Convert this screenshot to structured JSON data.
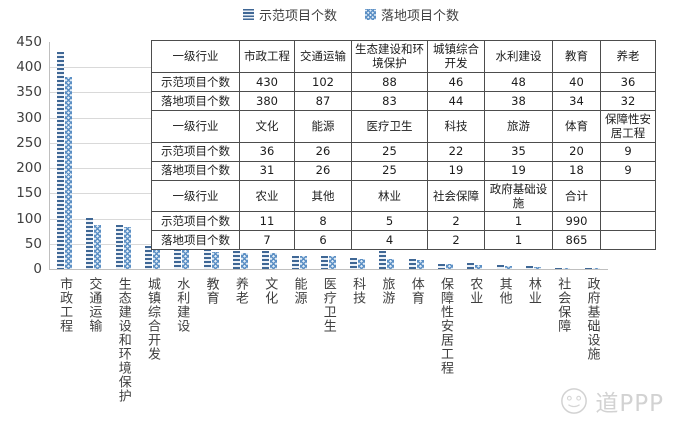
{
  "chart_data": {
    "type": "bar",
    "title": "",
    "categories": [
      "市政工程",
      "交通运输",
      "生态建设和环境保护",
      "城镇综合开发",
      "水利建设",
      "教育",
      "养老",
      "文化",
      "能源",
      "医疗卫生",
      "科技",
      "旅游",
      "体育",
      "保障性安居工程",
      "农业",
      "其他",
      "林业",
      "社会保障",
      "政府基础设施"
    ],
    "series": [
      {
        "name": "示范项目个数",
        "values": [
          430,
          102,
          88,
          46,
          48,
          40,
          36,
          36,
          26,
          25,
          22,
          35,
          20,
          9,
          11,
          8,
          5,
          2,
          1
        ]
      },
      {
        "name": "落地项目个数",
        "values": [
          380,
          87,
          83,
          44,
          38,
          34,
          32,
          31,
          26,
          25,
          19,
          19,
          18,
          9,
          7,
          6,
          4,
          2,
          1
        ]
      }
    ],
    "totals": {
      "label": "合计",
      "示范项目个数": 990,
      "落地项目个数": 865
    },
    "ylim": [
      0,
      450
    ],
    "y_ticks": [
      0,
      50,
      100,
      150,
      200,
      250,
      300,
      350,
      400,
      450
    ],
    "grid": true,
    "legend_position": "top"
  },
  "table": {
    "rows": [
      {
        "type": "hdr",
        "cells": [
          "一级行业",
          "市政工程",
          "交通运输",
          "生态建设和环境保护",
          "城镇综合开发",
          "水利建设",
          "教育",
          "养老"
        ]
      },
      {
        "type": "data",
        "cells": [
          "示范项目个数",
          "430",
          "102",
          "88",
          "46",
          "48",
          "40",
          "36"
        ]
      },
      {
        "type": "data",
        "cells": [
          "落地项目个数",
          "380",
          "87",
          "83",
          "44",
          "38",
          "34",
          "32"
        ]
      },
      {
        "type": "hdr",
        "cells": [
          "一级行业",
          "文化",
          "能源",
          "医疗卫生",
          "科技",
          "旅游",
          "体育",
          "保障性安居工程"
        ]
      },
      {
        "type": "data",
        "cells": [
          "示范项目个数",
          "36",
          "26",
          "25",
          "22",
          "35",
          "20",
          "9"
        ]
      },
      {
        "type": "data",
        "cells": [
          "落地项目个数",
          "31",
          "26",
          "25",
          "19",
          "19",
          "18",
          "9"
        ]
      },
      {
        "type": "hdr",
        "cells": [
          "一级行业",
          "农业",
          "其他",
          "林业",
          "社会保障",
          "政府基础设施",
          "合计",
          ""
        ]
      },
      {
        "type": "data",
        "cells": [
          "示范项目个数",
          "11",
          "8",
          "5",
          "2",
          "1",
          "990",
          ""
        ]
      },
      {
        "type": "data",
        "cells": [
          "落地项目个数",
          "7",
          "6",
          "4",
          "2",
          "1",
          "865",
          ""
        ]
      }
    ]
  },
  "watermark": {
    "text": "道PPP",
    "logo_icon": "panda-circle-logo"
  },
  "colors": {
    "series1_line": "#3f6795",
    "series1_bg": "#edf2f8",
    "series2_line": "#5b8fc4",
    "series2_bg": "#e2edf7",
    "grid": "#d9d9d9",
    "axis": "#bfbfbf",
    "table_border": "#4d4d4d",
    "watermark": "#c4c4c4"
  }
}
